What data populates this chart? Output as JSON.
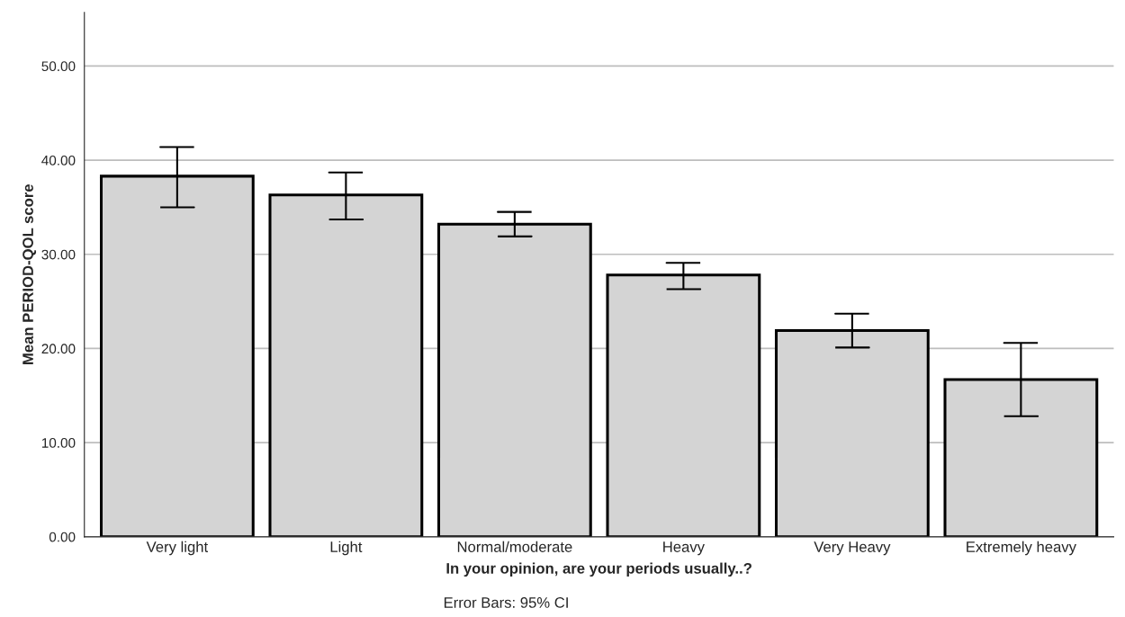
{
  "chart_data": {
    "type": "bar",
    "categories": [
      "Very light",
      "Light",
      "Normal/moderate",
      "Heavy",
      "Very Heavy",
      "Extremely heavy"
    ],
    "values": [
      38.3,
      36.3,
      33.2,
      27.8,
      21.9,
      16.7
    ],
    "errors": [
      [
        35.0,
        41.4
      ],
      [
        33.7,
        38.7
      ],
      [
        31.9,
        34.5
      ],
      [
        26.3,
        29.1
      ],
      [
        20.1,
        23.7
      ],
      [
        12.8,
        20.6
      ]
    ],
    "color": "#d4d4d4",
    "xlabel": "In your opinion, are your periods usually..?",
    "ylabel": "Mean PERIOD-QOL score",
    "annotations": [
      "Error Bars: 95% CI"
    ],
    "ylim": [
      0,
      55.7
    ],
    "yticks": [
      {
        "value": 0,
        "label": "0.00"
      },
      {
        "value": 10,
        "label": "10.00"
      },
      {
        "value": 20,
        "label": "20.00"
      },
      {
        "value": 30,
        "label": "30.00"
      },
      {
        "value": 40,
        "label": "40.00"
      },
      {
        "value": 50,
        "label": "50.00"
      }
    ],
    "grid": "y"
  }
}
